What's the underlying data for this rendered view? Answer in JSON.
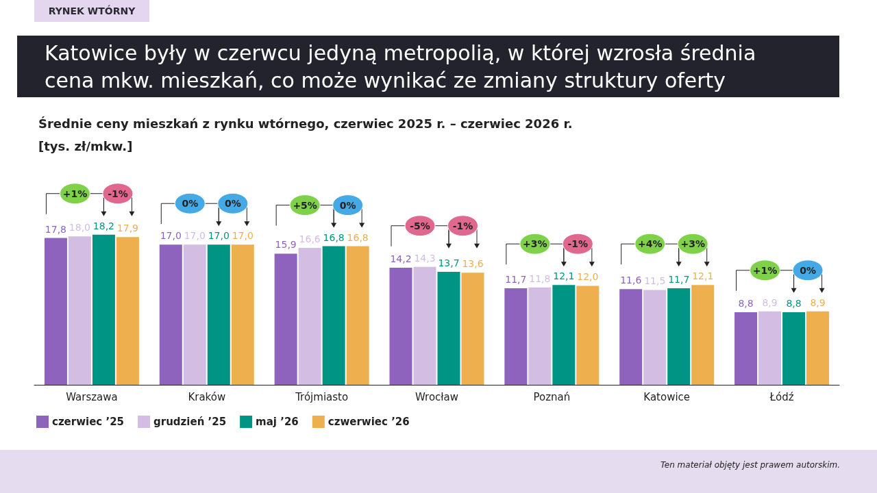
{
  "chart_data": {
    "type": "bar",
    "title": "Katowice były w czerwcu jedyną metropolią, w której wzrosła średnia cena mkw. mieszkań, co może wynikać ze zmiany struktury oferty",
    "subtitle": "Średnie ceny mieszkań z rynku wtórnego, czerwiec 2025 r. – czerwiec 2026 r.",
    "categories": [
      "Warszawa",
      "Kraków",
      "Trójmiasto",
      "Wrocław",
      "Poznań",
      "Katowice",
      "Łódź"
    ],
    "series": [
      {
        "name": "czerwiec ’25",
        "color": "#8e63bd",
        "values": [
          17.8,
          17.0,
          15.9,
          14.2,
          11.7,
          11.6,
          8.8
        ],
        "value_labels": [
          "17,8",
          "17,0",
          "15,9",
          "14,2",
          "11,7",
          "11,6",
          "8,8"
        ]
      },
      {
        "name": "grudzień ’25",
        "color": "#d3bde3",
        "values": [
          18.0,
          17.0,
          16.6,
          14.3,
          11.8,
          11.5,
          8.9
        ],
        "value_labels": [
          "18,0",
          "17,0",
          "16,6",
          "14,3",
          "11,8",
          "11,5",
          "8,9"
        ]
      },
      {
        "name": "maj ’26",
        "color": "#009485",
        "values": [
          18.2,
          17.0,
          16.8,
          13.7,
          12.1,
          11.7,
          8.8
        ],
        "value_labels": [
          "18,2",
          "17,0",
          "16,8",
          "13,7",
          "12,1",
          "11,7",
          "8,8"
        ]
      },
      {
        "name": "czwerwiec ’26",
        "color": "#eeaf4e",
        "values": [
          17.9,
          17.0,
          16.8,
          13.6,
          12.0,
          12.1,
          8.9
        ],
        "value_labels": [
          "17,9",
          "17,0",
          "16,8",
          "13,6",
          "12,0",
          "12,1",
          "8,9"
        ]
      }
    ],
    "legend": "bottom left",
    "annotations": [
      "RYNEK WTÓRNY",
      "[tys. zł/mkw.]",
      "Ten materiał objęty jest prawem autorskim.",
      "+1%",
      "-1%",
      "0%",
      "0%",
      "+5%",
      "0%",
      "-5%",
      "-1%",
      "+3%",
      "-1%",
      "+4%",
      "+3%",
      "+1%",
      "0%"
    ]
  }
}
